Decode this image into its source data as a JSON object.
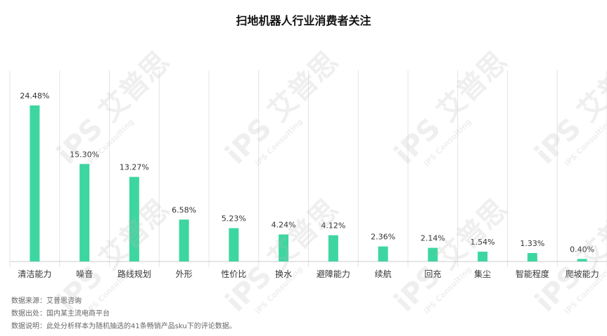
{
  "chart_data": {
    "type": "bar",
    "title": "扫地机器人行业消费者关注",
    "categories": [
      "清洁能力",
      "噪音",
      "路线规划",
      "外形",
      "性价比",
      "换水",
      "避障能力",
      "续航",
      "回充",
      "集尘",
      "智能程度",
      "爬坡能力"
    ],
    "values": [
      24.48,
      15.3,
      13.27,
      6.58,
      5.23,
      4.24,
      4.12,
      2.36,
      2.14,
      1.54,
      1.33,
      0.4
    ],
    "value_labels": [
      "24.48%",
      "15.30%",
      "13.27%",
      "6.58%",
      "5.23%",
      "4.24%",
      "4.12%",
      "2.36%",
      "2.14%",
      "1.54%",
      "1.33%",
      "0.40%"
    ],
    "xlabel": "",
    "ylabel": "",
    "ylim": [
      0,
      28
    ],
    "bar_color": "#3ed6a0",
    "grid": "vertical separators"
  },
  "footnotes": {
    "source": "数据来源：艾普思咨询",
    "origin": "数据出处：国内某主流电商平台",
    "note": "数据说明：此处分析样本为随机抽选的41条畅销产品sku下的评论数据。"
  },
  "watermark": {
    "brand": "iPS 艾普思",
    "sub": "iPS Consulting"
  }
}
